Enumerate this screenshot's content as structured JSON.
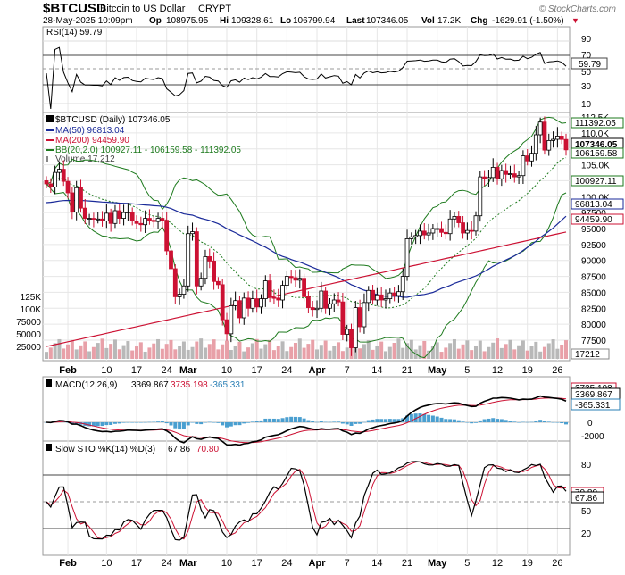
{
  "header": {
    "symbol": "$BTCUSD",
    "name": "Bitcoin to US Dollar",
    "exchange": "CRYPT",
    "watermark": "© StockCharts.com",
    "date": "28-May-2025 10:09pm",
    "op_label": "Op",
    "op": "108975.95",
    "hi_label": "Hi",
    "hi": "109328.61",
    "lo_label": "Lo",
    "lo": "106799.94",
    "last_label": "Last",
    "last": "107346.05",
    "vol_label": "Vol",
    "vol": "17.2K",
    "chg_label": "Chg",
    "chg": "-1629.91 (-1.50%)",
    "chg_arrow": "▼"
  },
  "rsi_panel": {
    "legend": "RSI(14) 59.79",
    "levels": [
      "90",
      "70",
      "50",
      "30",
      "10"
    ],
    "last_tag": "59.79"
  },
  "price_panel": {
    "legend_title": "$BTCUSD (Daily) 107346.05",
    "ma50": "MA(50) 96813.04",
    "ma200": "MA(200) 94459.90",
    "bb": "BB(20,2.0) 100927.11 - 106159.58 - 111392.05",
    "volume": "Volume 17,212",
    "axis_labels": [
      "112.5K",
      "110.0K",
      "107.5K",
      "105.0K",
      "102.5K",
      "100.0K",
      "97500",
      "95000",
      "92500",
      "90000",
      "87500",
      "85000",
      "82500",
      "80000",
      "77500"
    ],
    "tags": {
      "bb_upper": "111392.05",
      "last": "107346.05",
      "bb_mid": "106159.58",
      "bb_lower": "100927.11",
      "ma50": "96813.04",
      "ma200": "94459.90",
      "volume": "17212"
    },
    "volume_axis_labels": [
      "125K",
      "100K",
      "75000",
      "50000",
      "25000"
    ]
  },
  "macd_panel": {
    "legend_prefix": "MACD(12,26,9)",
    "macd": "3369.867",
    "signal": "3735.198",
    "hist": "-365.331",
    "levels": [
      "2000",
      "0",
      "-2000"
    ],
    "tags": {
      "signal": "3735.198",
      "macd": "3369.867",
      "hist": "-365.331"
    }
  },
  "sto_panel": {
    "legend_prefix": "Slow STO %K(14) %D(3)",
    "k": "67.86",
    "d": "70.80",
    "levels": [
      "80",
      "50",
      "20"
    ],
    "tags": {
      "d": "70.80",
      "k": "67.86"
    }
  },
  "x_axis": {
    "labels": [
      "Feb",
      "10",
      "17",
      "24",
      "Mar",
      "10",
      "17",
      "24",
      "Apr",
      "7",
      "14",
      "21",
      "May",
      "5",
      "12",
      "19",
      "26"
    ]
  },
  "colors": {
    "up": "#000000",
    "down": "#cc1133",
    "bb": "#1d7a1d",
    "ma50": "#1a2a99",
    "ma200": "#cc1133",
    "macd_signal": "#cc1133",
    "hist": "#4a9fd0",
    "volume_up": "#b8b8b8",
    "volume_down": "#e8a0a8"
  },
  "chart_data": {
    "type": "candlestick",
    "start_date": "2025-01-27",
    "x": [
      "2025-01-27",
      "2025-01-28",
      "2025-01-29",
      "2025-01-30",
      "2025-01-31",
      "2025-02-01",
      "2025-02-02",
      "2025-02-03",
      "2025-02-04",
      "2025-02-05",
      "2025-02-06",
      "2025-02-07",
      "2025-02-08",
      "2025-02-09",
      "2025-02-10",
      "2025-02-11",
      "2025-02-12",
      "2025-02-13",
      "2025-02-14",
      "2025-02-15",
      "2025-02-16",
      "2025-02-17",
      "2025-02-18",
      "2025-02-19",
      "2025-02-20",
      "2025-02-21",
      "2025-02-22",
      "2025-02-23",
      "2025-02-24",
      "2025-02-25",
      "2025-02-26",
      "2025-02-27",
      "2025-02-28",
      "2025-03-01",
      "2025-03-02",
      "2025-03-03",
      "2025-03-04",
      "2025-03-05",
      "2025-03-06",
      "2025-03-07",
      "2025-03-08",
      "2025-03-09",
      "2025-03-10",
      "2025-03-11",
      "2025-03-12",
      "2025-03-13",
      "2025-03-14",
      "2025-03-15",
      "2025-03-16",
      "2025-03-17",
      "2025-03-18",
      "2025-03-19",
      "2025-03-20",
      "2025-03-21",
      "2025-03-22",
      "2025-03-23",
      "2025-03-24",
      "2025-03-25",
      "2025-03-26",
      "2025-03-27",
      "2025-03-28",
      "2025-03-29",
      "2025-03-30",
      "2025-03-31",
      "2025-04-01",
      "2025-04-02",
      "2025-04-03",
      "2025-04-04",
      "2025-04-05",
      "2025-04-06",
      "2025-04-07",
      "2025-04-08",
      "2025-04-09",
      "2025-04-10",
      "2025-04-11",
      "2025-04-12",
      "2025-04-13",
      "2025-04-14",
      "2025-04-15",
      "2025-04-16",
      "2025-04-17",
      "2025-04-18",
      "2025-04-19",
      "2025-04-20",
      "2025-04-21",
      "2025-04-22",
      "2025-04-23",
      "2025-04-24",
      "2025-04-25",
      "2025-04-26",
      "2025-04-27",
      "2025-04-28",
      "2025-04-29",
      "2025-04-30",
      "2025-05-01",
      "2025-05-02",
      "2025-05-03",
      "2025-05-04",
      "2025-05-05",
      "2025-05-06",
      "2025-05-07",
      "2025-05-08",
      "2025-05-09",
      "2025-05-10",
      "2025-05-11",
      "2025-05-12",
      "2025-05-13",
      "2025-05-14",
      "2025-05-15",
      "2025-05-16",
      "2025-05-17",
      "2025-05-18",
      "2025-05-19",
      "2025-05-20",
      "2025-05-21",
      "2025-05-22",
      "2025-05-23",
      "2025-05-24",
      "2025-05-25",
      "2025-05-26",
      "2025-05-27",
      "2025-05-28"
    ],
    "close": [
      102000,
      101500,
      103800,
      104300,
      102400,
      100600,
      97600,
      101400,
      98200,
      96600,
      96600,
      96500,
      96500,
      96200,
      97400,
      95800,
      97800,
      96600,
      97500,
      97600,
      96200,
      95800,
      95600,
      96600,
      96300,
      96100,
      96600,
      96300,
      91500,
      88700,
      84300,
      84700,
      86000,
      94200,
      94500,
      86000,
      87200,
      90600,
      89900,
      86700,
      86200,
      80700,
      78500,
      82900,
      83700,
      81000,
      84100,
      82500,
      84000,
      82700,
      84000,
      86800,
      84200,
      84100,
      83800,
      86100,
      87500,
      87300,
      86900,
      87200,
      84300,
      82600,
      82300,
      82500,
      85200,
      82500,
      83200,
      83800,
      83500,
      78400,
      79200,
      76300,
      82600,
      79600,
      83400,
      85300,
      83800,
      84600,
      83800,
      84000,
      84900,
      84500,
      85100,
      87500,
      93400,
      93700,
      93900,
      94600,
      94000,
      94300,
      95000,
      95000,
      94400,
      94200,
      96500,
      96900,
      95900,
      94300,
      94700,
      94600,
      97000,
      103100,
      102800,
      103000,
      104600,
      102800,
      104100,
      103500,
      103600,
      103100,
      103300,
      106400,
      105600,
      106800,
      109700,
      111700,
      107300,
      108800,
      109000,
      109500,
      108975,
      107346
    ],
    "volume_units": "shares",
    "ma_labels": [
      "MA(50) 96813.04",
      "MA(200) 94459.90"
    ],
    "rsi_last": 59.79,
    "macd_last": 3369.867,
    "signal_last": 3735.198,
    "hist_last": -365.331,
    "sto_k_last": 67.86,
    "sto_d_last": 70.8
  }
}
